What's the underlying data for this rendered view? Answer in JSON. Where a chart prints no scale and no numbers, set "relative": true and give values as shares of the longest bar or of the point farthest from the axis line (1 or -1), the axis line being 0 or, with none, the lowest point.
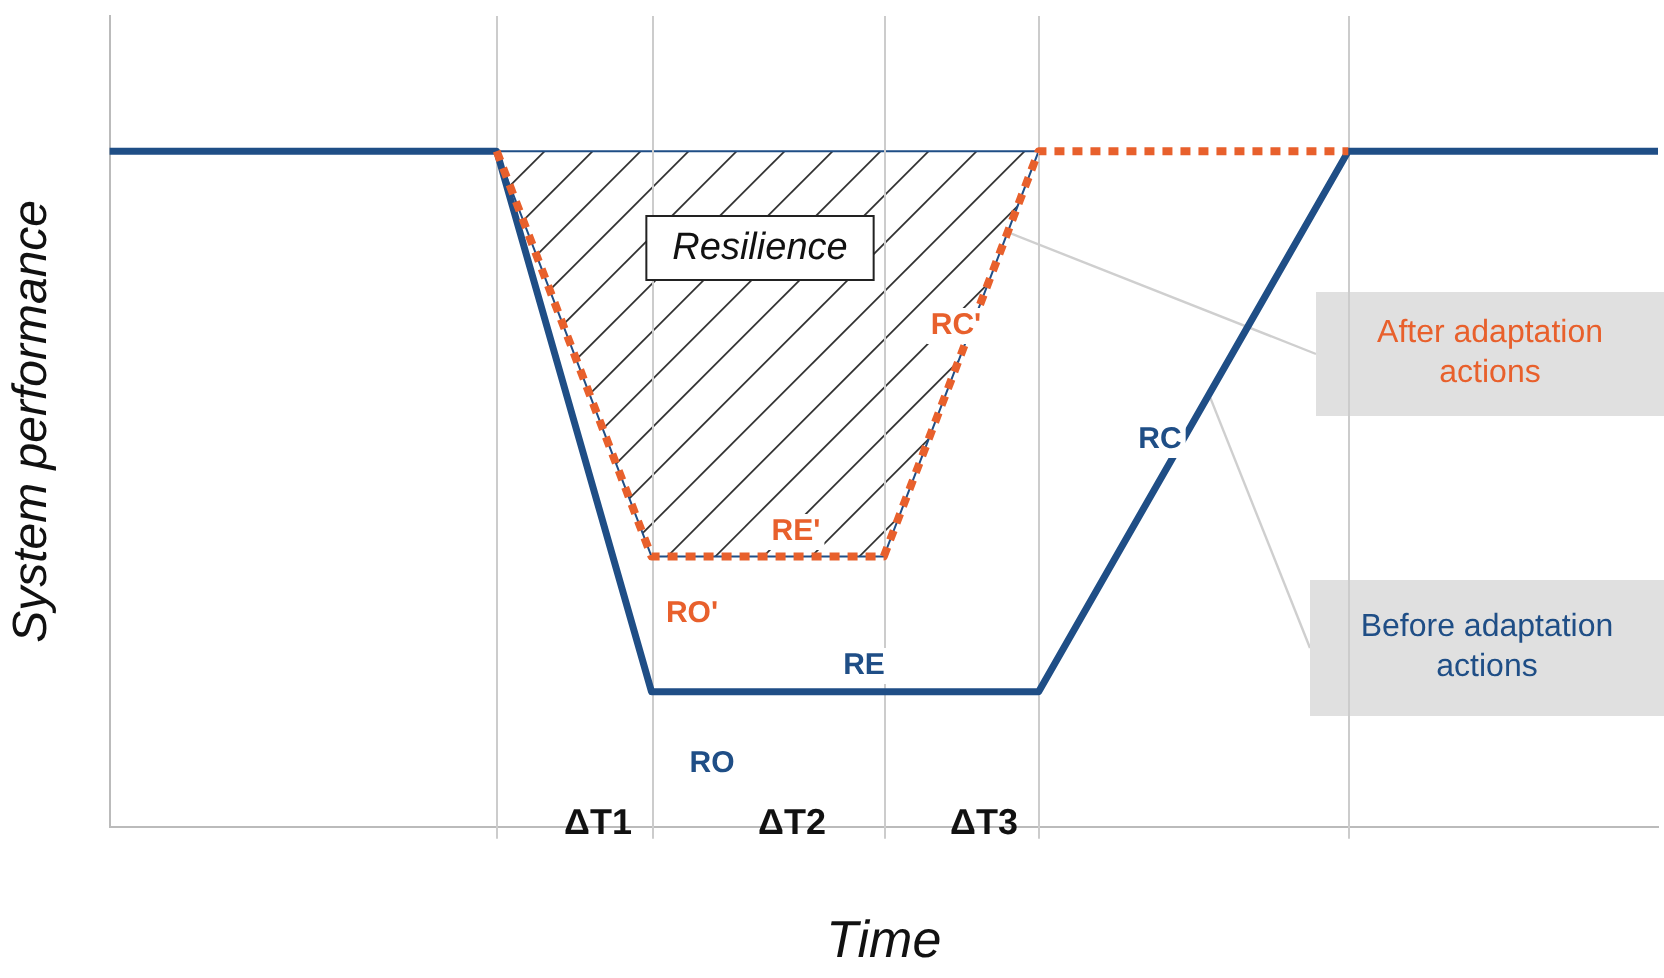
{
  "chart_data": {
    "type": "line",
    "relative": true,
    "xlabel": "Time",
    "ylabel": "System performance",
    "categories": [
      null,
      null,
      null,
      null,
      null,
      null,
      null,
      null,
      null,
      null,
      null,
      null,
      null,
      null,
      null,
      null,
      null,
      null,
      null,
      null,
      null
    ],
    "grid": "x",
    "legend": false,
    "marker": "none",
    "series": [
      {
        "name": "Before adaptation actions",
        "color": "#1f4e86",
        "values": [
          1,
          1,
          1,
          1,
          1,
          1,
          0.6,
          0.2,
          0.2,
          0.2,
          0.2,
          0.2,
          0.2,
          0.4,
          0.6,
          0.8,
          1,
          1,
          1,
          1,
          1
        ],
        "line_style": "solid"
      },
      {
        "name": "After adaptation actions",
        "color": "#e8602c",
        "values": [
          null,
          null,
          null,
          null,
          null,
          1,
          0.7,
          0.4,
          0.4,
          0.4,
          0.4,
          0.7,
          1,
          1,
          1,
          1,
          1,
          null,
          null,
          null,
          null
        ],
        "line_style": "dotted"
      }
    ],
    "annotations": [
      "Resilience",
      "RO",
      "RE",
      "RC",
      "RO'",
      "RE'",
      "RC'",
      "ΔT1",
      "ΔT2",
      "ΔT3"
    ]
  }
}
